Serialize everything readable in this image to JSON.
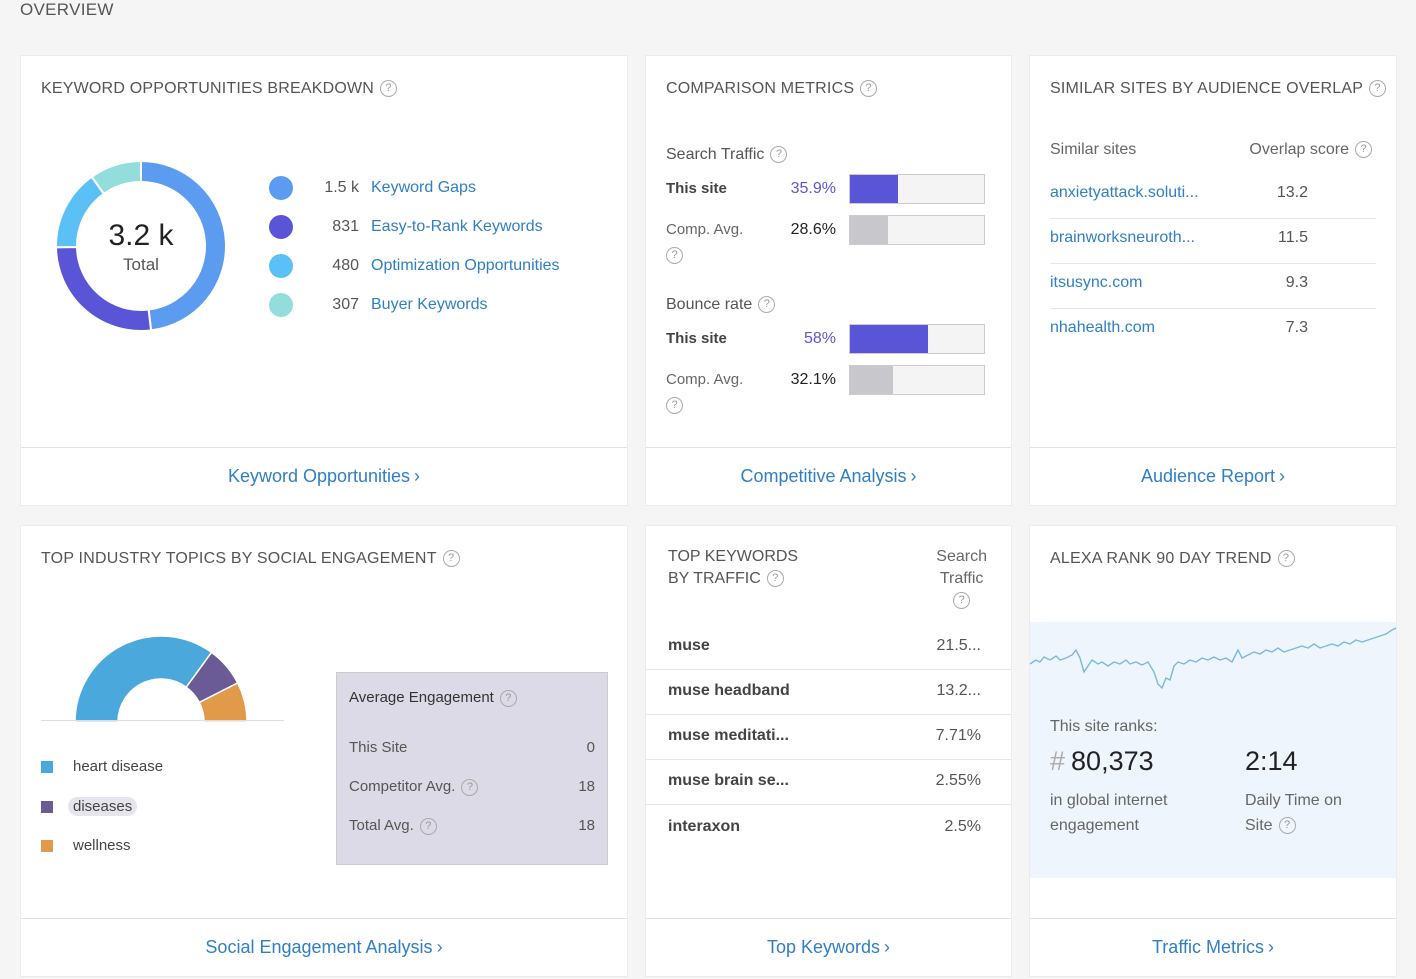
{
  "page_title": "OVERVIEW",
  "keyword_card": {
    "title": "KEYWORD OPPORTUNITIES BREAKDOWN",
    "total_value": "3.2 k",
    "total_label": "Total",
    "items": [
      {
        "count": "1.5 k",
        "label": "Keyword Gaps",
        "color": "#5b9cf0",
        "value": 1500
      },
      {
        "count": "831",
        "label": "Easy-to-Rank Keywords",
        "color": "#5a55d6",
        "value": 831
      },
      {
        "count": "480",
        "label": "Optimization Opportunities",
        "color": "#5bc0f5",
        "value": 480
      },
      {
        "count": "307",
        "label": "Buyer Keywords",
        "color": "#93dedd",
        "value": 307
      }
    ],
    "footer": "Keyword Opportunities"
  },
  "comparison_card": {
    "title": "COMPARISON METRICS",
    "metrics": [
      {
        "name": "Search Traffic",
        "this_label": "This site",
        "this_value": "35.9%",
        "this_fraction": 0.359,
        "comp_label": "Comp. Avg.",
        "comp_value": "28.6%",
        "comp_fraction": 0.286
      },
      {
        "name": "Bounce rate",
        "this_label": "This site",
        "this_value": "58%",
        "this_fraction": 0.58,
        "comp_label": "Comp. Avg.",
        "comp_value": "32.1%",
        "comp_fraction": 0.321
      }
    ],
    "this_color": "#5a55d6",
    "comp_color": "#c8c8cc",
    "footer": "Competitive Analysis"
  },
  "similar_card": {
    "title": "SIMILAR SITES BY AUDIENCE OVERLAP",
    "col_site": "Similar sites",
    "col_score": "Overlap score",
    "rows": [
      {
        "site": "anxietyattack.soluti...",
        "score": "13.2"
      },
      {
        "site": "brainworksneuroth...",
        "score": "11.5"
      },
      {
        "site": "itsusync.com",
        "score": "9.3"
      },
      {
        "site": "nhahealth.com",
        "score": "7.3"
      }
    ],
    "footer": "Audience Report"
  },
  "social_card": {
    "title": "TOP INDUSTRY TOPICS BY SOCIAL ENGAGEMENT",
    "topics": [
      {
        "name": "heart disease",
        "color": "#4aa8dc",
        "value": 70
      },
      {
        "name": "diseases",
        "color": "#6a5a96",
        "value": 15
      },
      {
        "name": "wellness",
        "color": "#e09a4a",
        "value": 15
      }
    ],
    "engagement": {
      "title": "Average Engagement",
      "rows": [
        {
          "label": "This Site",
          "value": "0"
        },
        {
          "label": "Competitor Avg.",
          "value": "18"
        },
        {
          "label": "Total Avg.",
          "value": "18"
        }
      ]
    },
    "footer": "Social Engagement Analysis"
  },
  "keywords_card": {
    "title_line1": "TOP KEYWORDS",
    "title_line2": "BY TRAFFIC",
    "col_line1": "Search",
    "col_line2": "Traffic",
    "rows": [
      {
        "keyword": "muse",
        "traffic": "21.5..."
      },
      {
        "keyword": "muse headband",
        "traffic": "13.2..."
      },
      {
        "keyword": "muse meditati...",
        "traffic": "7.71%"
      },
      {
        "keyword": "muse brain se...",
        "traffic": "2.55%"
      },
      {
        "keyword": "interaxon",
        "traffic": "2.5%"
      }
    ],
    "footer": "Top Keywords"
  },
  "alexa_card": {
    "title": "ALEXA RANK 90 DAY TREND",
    "ranks_label": "This site ranks:",
    "hash": "#",
    "rank_value": "80,373",
    "rank_caption": "in global internet engagement",
    "time_value": "2:14",
    "time_caption_1": "Daily Time on",
    "time_caption_2": "Site",
    "trend_color": "#7ab8e2",
    "footer": "Traffic Metrics"
  },
  "icons": {
    "help": "?",
    "chevron": "›"
  }
}
